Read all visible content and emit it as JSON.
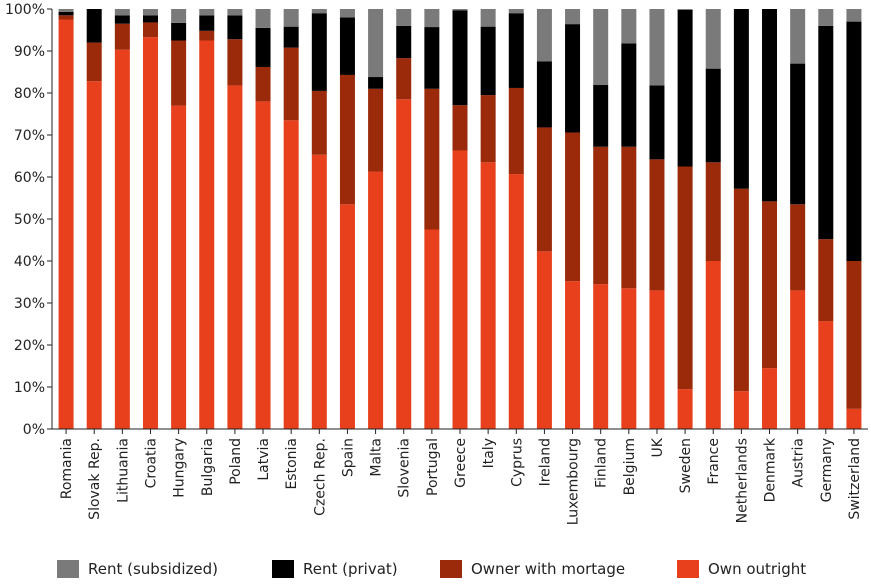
{
  "chart_data": {
    "type": "bar",
    "stacked": true,
    "grid": false,
    "legend_position": "bottom",
    "ylim": [
      0,
      100
    ],
    "yticks": [
      "0%",
      "10%",
      "20%",
      "30%",
      "40%",
      "50%",
      "60%",
      "70%",
      "80%",
      "90%",
      "100%"
    ],
    "categories": [
      "Romania",
      "Slovak Rep.",
      "Lithuania",
      "Croatia",
      "Hungary",
      "Bulgaria",
      "Poland",
      "Latvia",
      "Estonia",
      "Czech Rep.",
      "Spain",
      "Malta",
      "Slovenia",
      "Portugal",
      "Greece",
      "Italy",
      "Cyprus",
      "Ireland",
      "Luxembourg",
      "Finland",
      "Belgium",
      "UK",
      "Sweden",
      "France",
      "Netherlands",
      "Denmark",
      "Austria",
      "Germany",
      "Switzerland"
    ],
    "series": [
      {
        "name": "Own outright",
        "color": "#e8401c",
        "values": [
          97.5,
          82.8,
          90.3,
          93.3,
          77.0,
          92.5,
          81.8,
          78.0,
          73.5,
          65.3,
          53.5,
          61.3,
          78.5,
          47.5,
          66.3,
          63.5,
          60.7,
          42.3,
          35.2,
          34.5,
          33.5,
          33.0,
          9.5,
          40.0,
          9.0,
          14.5,
          33.0,
          25.7,
          4.8
        ]
      },
      {
        "name": "Owner with mortage",
        "color": "#9b2a0a",
        "values": [
          1.0,
          9.2,
          6.2,
          3.5,
          15.5,
          2.3,
          11.0,
          8.2,
          17.3,
          15.2,
          30.8,
          19.7,
          9.8,
          33.5,
          10.8,
          16.0,
          20.5,
          29.5,
          35.4,
          32.7,
          33.7,
          31.2,
          53.0,
          23.5,
          48.2,
          39.7,
          20.5,
          19.5,
          35.2
        ]
      },
      {
        "name": "Rent (privat)",
        "color": "#000000",
        "values": [
          0.8,
          8.0,
          2.0,
          1.7,
          4.2,
          3.7,
          5.7,
          9.3,
          5.0,
          18.5,
          13.7,
          2.8,
          7.7,
          14.7,
          22.6,
          16.3,
          17.8,
          15.7,
          25.8,
          14.7,
          24.6,
          17.6,
          37.3,
          22.3,
          42.8,
          45.8,
          33.5,
          50.8,
          57.0
        ]
      },
      {
        "name": "Rent (subsidized)",
        "color": "#7a7a7a",
        "values": [
          0.7,
          0.0,
          1.5,
          1.5,
          3.3,
          1.5,
          1.5,
          4.5,
          4.2,
          1.0,
          2.0,
          16.2,
          4.0,
          4.3,
          0.3,
          4.2,
          1.0,
          12.5,
          3.6,
          18.1,
          8.2,
          18.2,
          0.2,
          14.2,
          0.0,
          0.0,
          13.0,
          4.0,
          3.0
        ]
      }
    ],
    "legend": [
      {
        "label": "Rent (subsidized)",
        "color": "#7a7a7a"
      },
      {
        "label": "Rent (privat)",
        "color": "#000000"
      },
      {
        "label": "Owner with mortage",
        "color": "#9b2a0a"
      },
      {
        "label": "Own outright",
        "color": "#e8401c"
      }
    ]
  }
}
